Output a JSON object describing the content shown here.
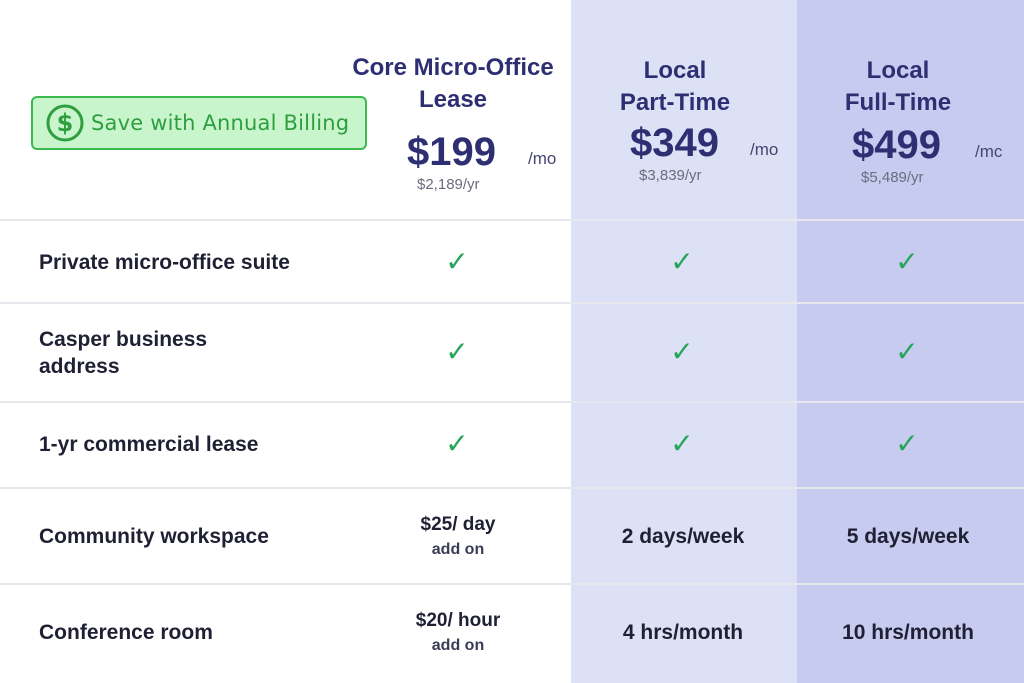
{
  "badge": {
    "label": "Save with Annual Billing",
    "icon": "dollar-circle-icon",
    "color": "#3cba4e"
  },
  "plans": [
    {
      "title_line1": "Core Micro-Office",
      "title_line2": "Lease",
      "price": "$199",
      "per": "/mo",
      "yearly": "$2,189/yr"
    },
    {
      "title_line1": "Local",
      "title_line2": "Part-Time",
      "price": "$349",
      "per": "/mo",
      "yearly": "$3,839/yr"
    },
    {
      "title_line1": "Local",
      "title_line2": "Full-Time",
      "price": "$499",
      "per": "/mc",
      "yearly": "$5,489/yr"
    }
  ],
  "features": [
    {
      "label_line1": "Private micro-office suite",
      "label_line2": "",
      "cells": [
        "✓",
        "✓",
        "✓"
      ]
    },
    {
      "label_line1": "Casper business",
      "label_line2": "address",
      "cells": [
        "✓",
        "✓",
        "✓"
      ]
    },
    {
      "label_line1": "1-yr commercial lease",
      "label_line2": "",
      "cells": [
        "✓",
        "✓",
        "✓"
      ]
    },
    {
      "label_line1": "Community workspace",
      "label_line2": "",
      "core_main": "$25/ day",
      "core_sub": "add on",
      "part": "2 days/week",
      "full": "5 days/week"
    },
    {
      "label_line1": "Conference room",
      "label_line2": "",
      "core_main": "$20/ hour",
      "core_sub": "add on",
      "part": "4 hrs/month",
      "full": "10 hrs/month"
    }
  ],
  "colors": {
    "accent": "#2e2f72",
    "check": "#26a55a",
    "mid_column": "#dde1f5",
    "right_column": "#c7cbef"
  }
}
